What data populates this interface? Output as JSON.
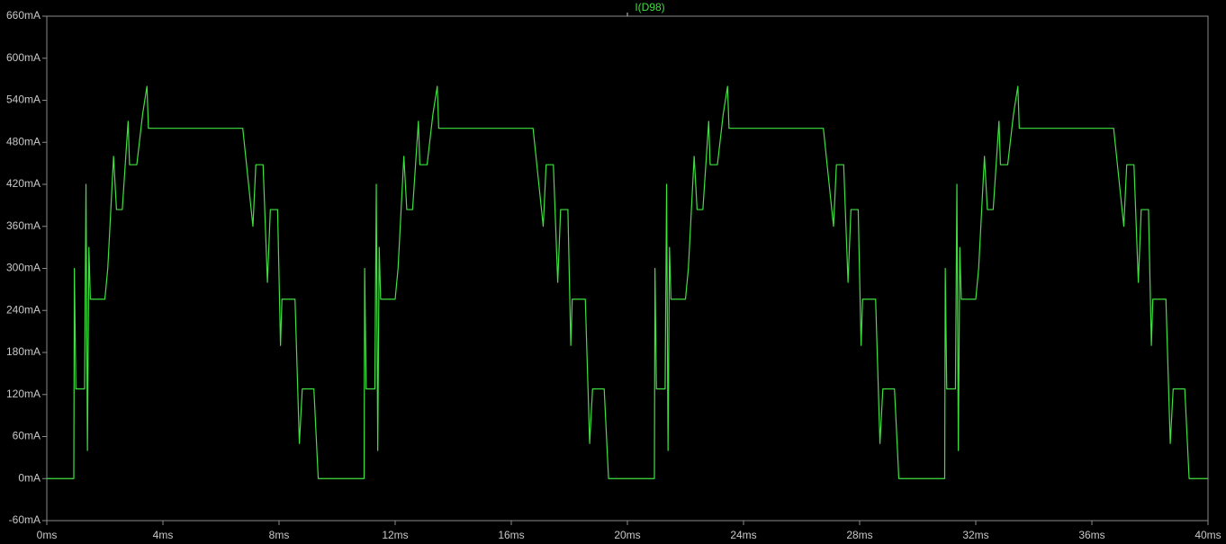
{
  "chart_data": {
    "type": "line",
    "x": [
      0,
      0.93,
      0.95,
      1,
      1.3,
      1.35,
      1.4,
      1.45,
      1.5,
      2,
      2.1,
      2.3,
      2.4,
      2.6,
      2.8,
      2.85,
      3.1,
      3.3,
      3.45,
      3.5,
      6.75,
      7.1,
      7.2,
      7.45,
      7.6,
      7.7,
      7.95,
      8.05,
      8.1,
      8.55,
      8.7,
      8.8,
      9.2,
      9.35,
      10.93,
      10.95,
      11,
      11.3,
      11.35,
      11.4,
      11.45,
      11.5,
      12,
      12.1,
      12.3,
      12.4,
      12.6,
      12.8,
      12.85,
      13.1,
      13.3,
      13.45,
      13.5,
      16.75,
      17.1,
      17.2,
      17.45,
      17.6,
      17.7,
      17.95,
      18.05,
      18.1,
      18.55,
      18.7,
      18.8,
      19.2,
      19.35,
      20.93,
      20.95,
      21,
      21.3,
      21.35,
      21.4,
      21.45,
      21.5,
      22,
      22.1,
      22.3,
      22.4,
      22.6,
      22.8,
      22.85,
      23.1,
      23.3,
      23.45,
      23.5,
      26.75,
      27.1,
      27.2,
      27.45,
      27.6,
      27.7,
      27.95,
      28.05,
      28.1,
      28.55,
      28.7,
      28.8,
      29.2,
      29.35,
      30.93,
      30.95,
      31,
      31.3,
      31.35,
      31.4,
      31.45,
      31.5,
      32,
      32.1,
      32.3,
      32.4,
      32.6,
      32.8,
      32.85,
      33.1,
      33.3,
      33.45,
      33.5,
      36.75,
      37.1,
      37.2,
      37.45,
      37.6,
      37.7,
      37.95,
      38.05,
      38.1,
      38.55,
      38.7,
      38.8,
      39.2,
      39.35,
      40
    ],
    "series": [
      {
        "name": "I(D98)",
        "color": "#3fe03f",
        "values": [
          0,
          0,
          300,
          128,
          128,
          420,
          40,
          330,
          256,
          256,
          300,
          460,
          384,
          384,
          510,
          448,
          448,
          520,
          560,
          500,
          500,
          360,
          448,
          448,
          280,
          384,
          384,
          190,
          256,
          256,
          50,
          128,
          128,
          0,
          0,
          300,
          128,
          128,
          420,
          40,
          330,
          256,
          256,
          300,
          460,
          384,
          384,
          510,
          448,
          448,
          520,
          560,
          500,
          500,
          360,
          448,
          448,
          280,
          384,
          384,
          190,
          256,
          256,
          50,
          128,
          128,
          0,
          0,
          300,
          128,
          128,
          420,
          40,
          330,
          256,
          256,
          300,
          460,
          384,
          384,
          510,
          448,
          448,
          520,
          560,
          500,
          500,
          360,
          448,
          448,
          280,
          384,
          384,
          190,
          256,
          256,
          50,
          128,
          128,
          0,
          0,
          300,
          128,
          128,
          420,
          40,
          330,
          256,
          256,
          300,
          460,
          384,
          384,
          510,
          448,
          448,
          520,
          560,
          500,
          500,
          360,
          448,
          448,
          280,
          384,
          384,
          190,
          256,
          256,
          50,
          128,
          128,
          0,
          0
        ]
      }
    ],
    "xlim": [
      0,
      40
    ],
    "ylim": [
      -60,
      660
    ],
    "xticks": [
      {
        "value": 0,
        "label": "0ms"
      },
      {
        "value": 4,
        "label": "4ms"
      },
      {
        "value": 8,
        "label": "8ms"
      },
      {
        "value": 12,
        "label": "12ms"
      },
      {
        "value": 16,
        "label": "16ms"
      },
      {
        "value": 20,
        "label": "20ms"
      },
      {
        "value": 24,
        "label": "24ms"
      },
      {
        "value": 28,
        "label": "28ms"
      },
      {
        "value": 32,
        "label": "32ms"
      },
      {
        "value": 36,
        "label": "36ms"
      },
      {
        "value": 40,
        "label": "40ms"
      }
    ],
    "yticks": [
      {
        "value": -60,
        "label": "-60mA"
      },
      {
        "value": 0,
        "label": "0mA"
      },
      {
        "value": 60,
        "label": "60mA"
      },
      {
        "value": 120,
        "label": "120mA"
      },
      {
        "value": 180,
        "label": "180mA"
      },
      {
        "value": 240,
        "label": "240mA"
      },
      {
        "value": 300,
        "label": "300mA"
      },
      {
        "value": 360,
        "label": "360mA"
      },
      {
        "value": 420,
        "label": "420mA"
      },
      {
        "value": 480,
        "label": "480mA"
      },
      {
        "value": 540,
        "label": "540mA"
      },
      {
        "value": 600,
        "label": "600mA"
      },
      {
        "value": 660,
        "label": "660mA"
      }
    ],
    "grid": false
  }
}
